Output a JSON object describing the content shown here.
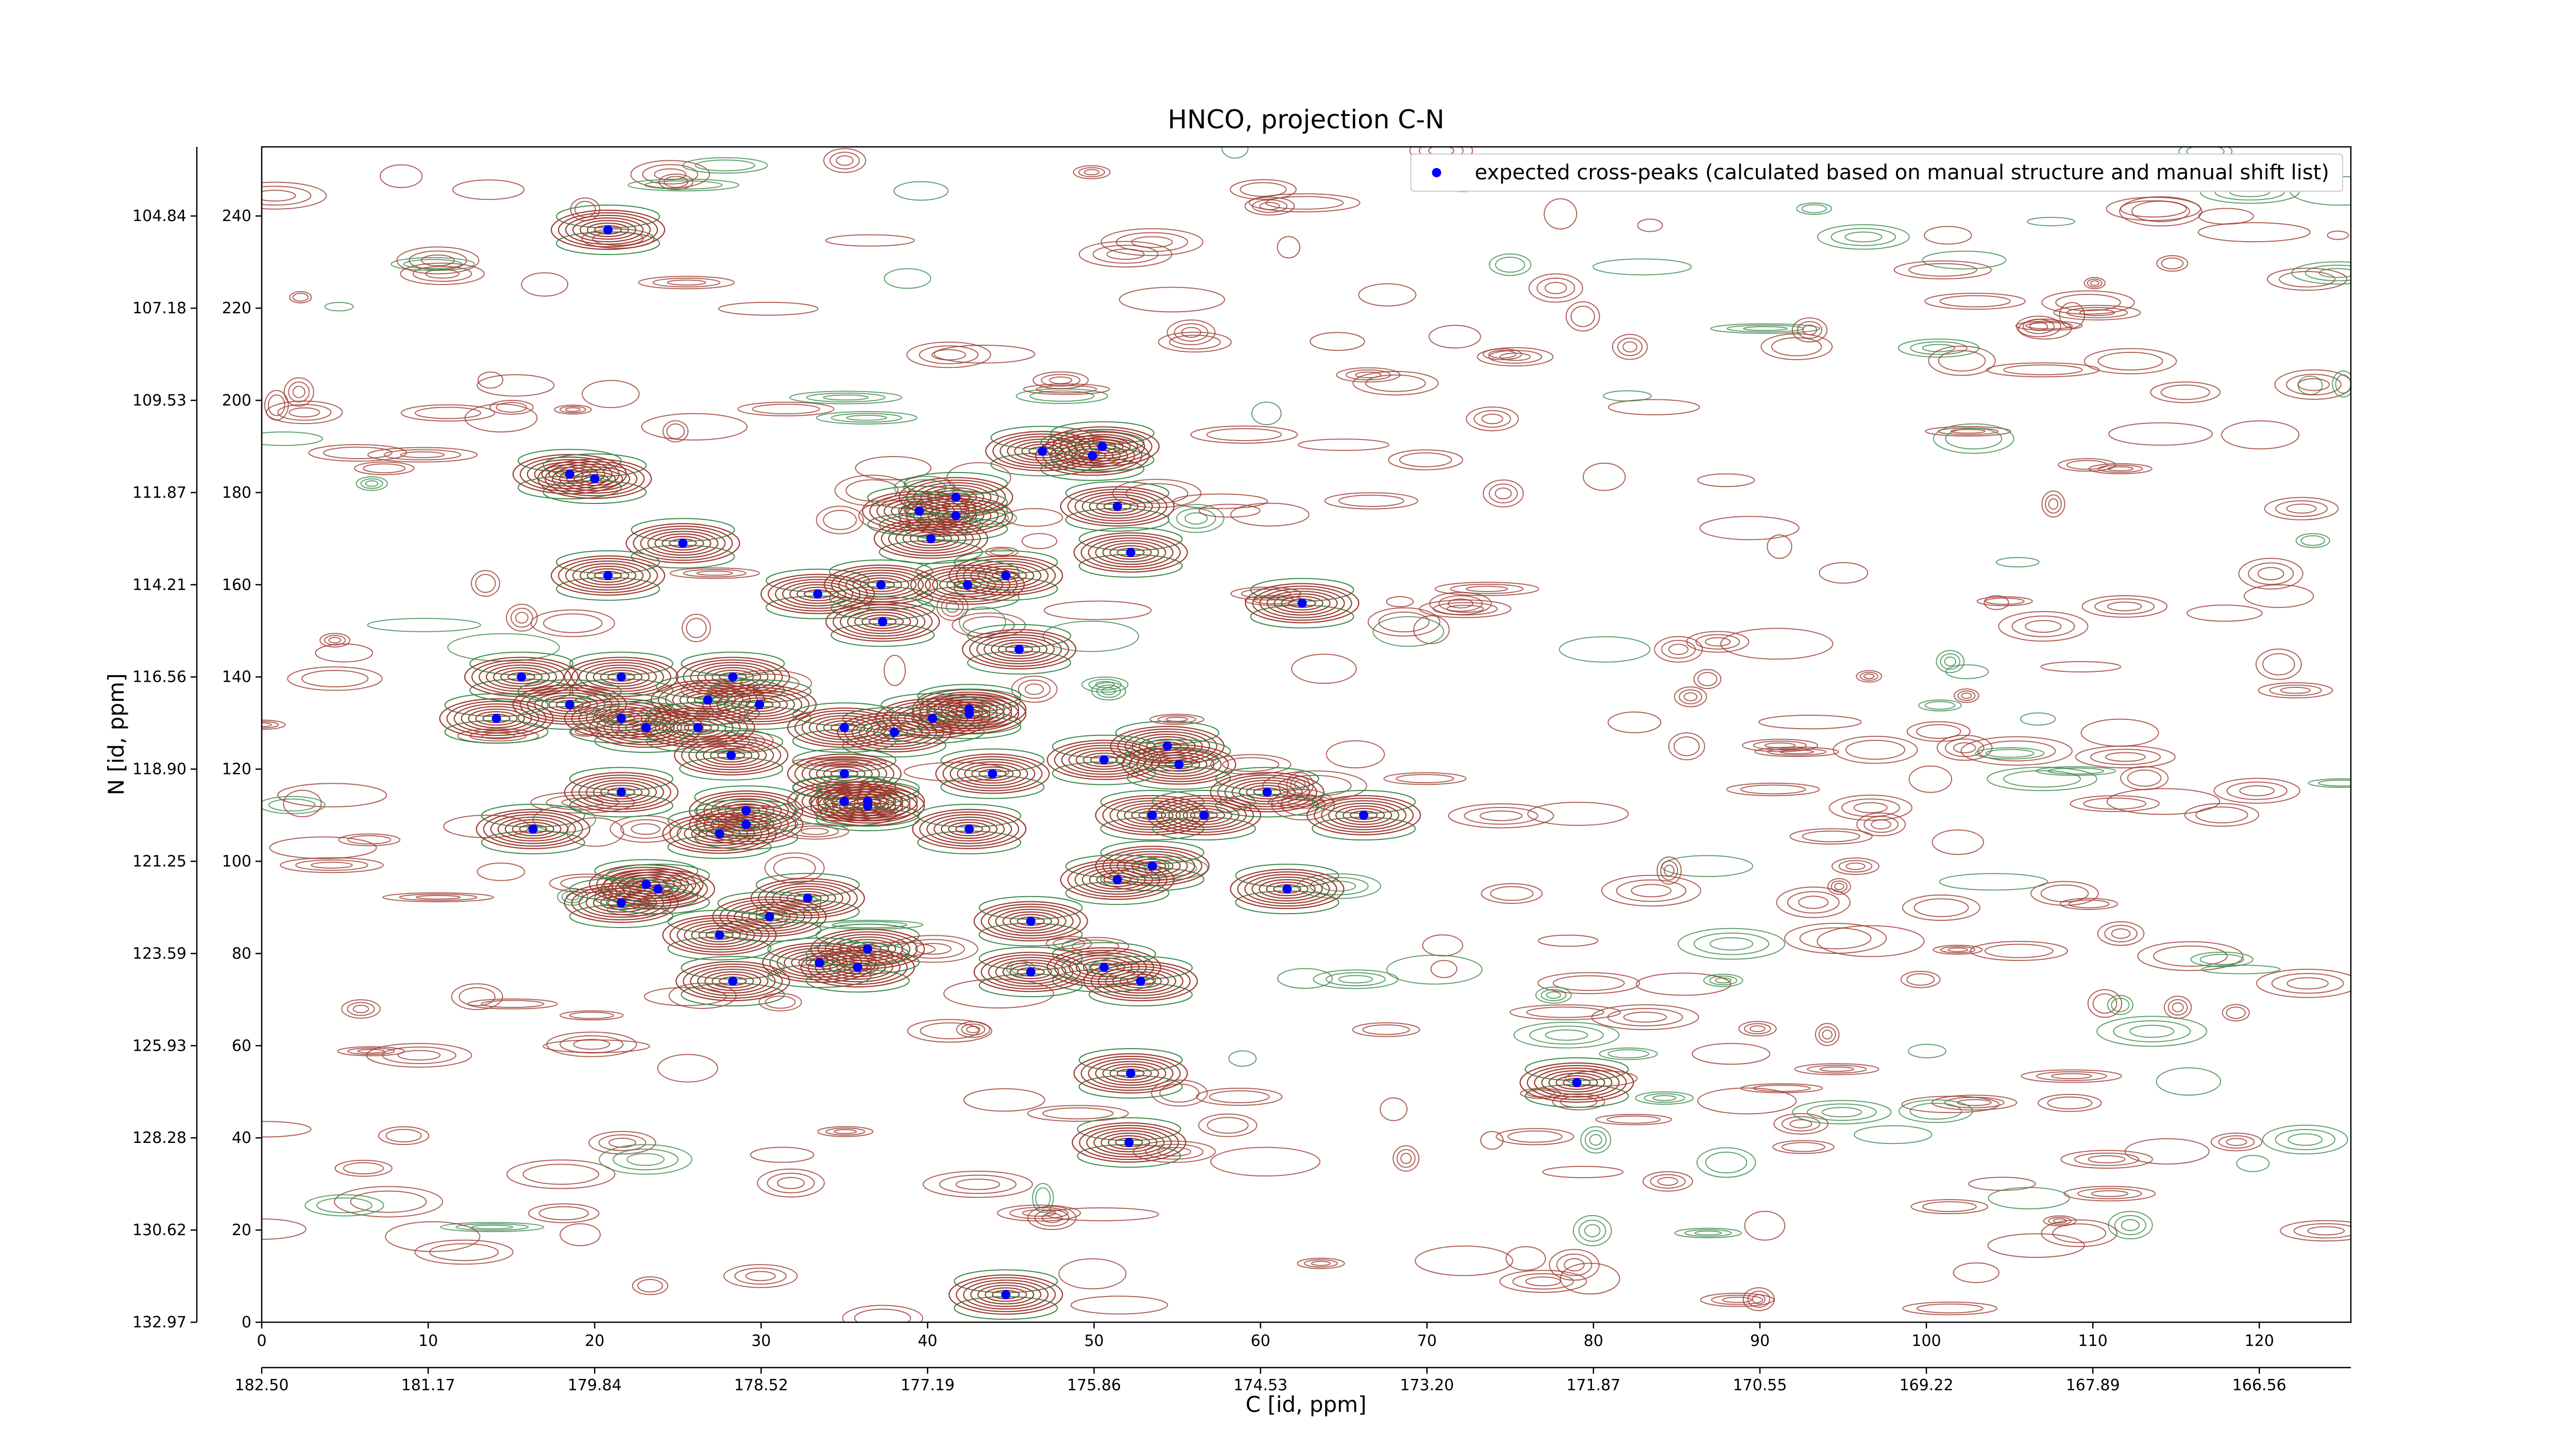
{
  "chart_data": {
    "type": "scatter",
    "title": "HNCO, projection C-N",
    "xlabel": "C [id, ppm]",
    "ylabel": "N [id, ppm]",
    "xlim": [
      0,
      125.5
    ],
    "ylim": [
      0,
      255
    ],
    "xticks": [
      0,
      10,
      20,
      30,
      40,
      50,
      60,
      70,
      80,
      90,
      100,
      110,
      120
    ],
    "yticks": [
      0,
      20,
      40,
      60,
      80,
      100,
      120,
      140,
      160,
      180,
      200,
      220,
      240
    ],
    "x2ticks": [
      {
        "value": 0,
        "label": "182.50"
      },
      {
        "value": 10,
        "label": "181.17"
      },
      {
        "value": 20,
        "label": "179.84"
      },
      {
        "value": 30,
        "label": "178.52"
      },
      {
        "value": 40,
        "label": "177.19"
      },
      {
        "value": 50,
        "label": "175.86"
      },
      {
        "value": 60,
        "label": "174.53"
      },
      {
        "value": 70,
        "label": "173.20"
      },
      {
        "value": 80,
        "label": "171.87"
      },
      {
        "value": 90,
        "label": "170.55"
      },
      {
        "value": 100,
        "label": "169.22"
      },
      {
        "value": 110,
        "label": "167.89"
      },
      {
        "value": 120,
        "label": "166.56"
      }
    ],
    "y2ticks": [
      {
        "value": 0,
        "label": "132.97"
      },
      {
        "value": 20,
        "label": "130.62"
      },
      {
        "value": 40,
        "label": "128.28"
      },
      {
        "value": 60,
        "label": "125.93"
      },
      {
        "value": 80,
        "label": "123.59"
      },
      {
        "value": 100,
        "label": "121.25"
      },
      {
        "value": 120,
        "label": "118.90"
      },
      {
        "value": 140,
        "label": "116.56"
      },
      {
        "value": 160,
        "label": "114.21"
      },
      {
        "value": 180,
        "label": "111.87"
      },
      {
        "value": 200,
        "label": "109.53"
      },
      {
        "value": 220,
        "label": "107.18"
      },
      {
        "value": 240,
        "label": "104.84"
      }
    ],
    "legend": "upper right",
    "series": [
      {
        "name": "expected cross-peaks (calculated based on manual structure and manual shift list)",
        "color": "#0000ff",
        "x": [
          20.8,
          18.5,
          20.0,
          46.9,
          49.9,
          50.5,
          39.5,
          41.7,
          41.7,
          51.4,
          40.2,
          25.3,
          52.2,
          20.8,
          44.7,
          33.4,
          37.2,
          42.4,
          62.5,
          37.3,
          45.5,
          15.6,
          21.6,
          28.3,
          18.5,
          26.8,
          29.9,
          14.1,
          21.6,
          23.1,
          26.2,
          42.5,
          42.5,
          40.3,
          38.0,
          35.0,
          28.2,
          54.4,
          55.1,
          50.6,
          35.0,
          43.9,
          21.6,
          60.4,
          35.0,
          36.4,
          36.4,
          29.1,
          29.1,
          53.5,
          56.6,
          66.2,
          27.5,
          42.5,
          16.3,
          53.5,
          51.4,
          23.1,
          23.8,
          61.6,
          32.8,
          21.6,
          30.5,
          46.2,
          27.5,
          36.4,
          33.5,
          35.8,
          50.6,
          46.2,
          52.8,
          28.3,
          79.0,
          52.2,
          52.1,
          44.7
        ],
        "values": [
          237,
          184,
          183,
          189,
          188,
          190,
          176,
          179,
          175,
          177,
          170,
          169,
          167,
          162,
          162,
          158,
          160,
          160,
          156,
          152,
          146,
          140,
          140,
          140,
          134,
          135,
          134,
          131,
          131,
          129,
          129,
          133,
          132,
          131,
          128,
          129,
          123,
          125,
          121,
          122,
          119,
          119,
          115,
          115,
          113,
          113,
          112,
          111,
          108,
          110,
          110,
          110,
          106,
          107,
          107,
          99,
          96,
          95,
          94,
          94,
          92,
          91,
          88,
          87,
          84,
          81,
          78,
          77,
          77,
          76,
          74,
          74,
          52,
          54,
          39,
          6
        ]
      }
    ]
  }
}
